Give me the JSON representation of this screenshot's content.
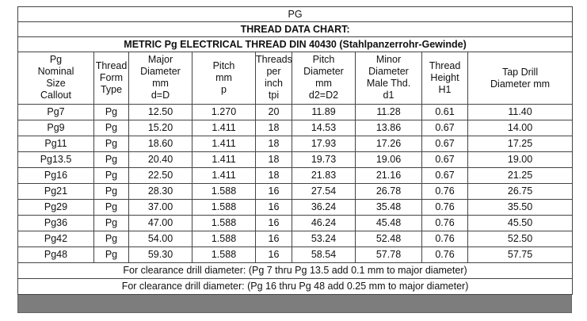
{
  "table": {
    "title": "PG",
    "chart_title": "THREAD DATA CHART:",
    "subtitle": "METRIC Pg ELECTRICAL THREAD DIN 40430 (Stahlpanzerrohr-Gewinde)",
    "headers": [
      [
        "Pg",
        "Nominal",
        "Size",
        "Callout"
      ],
      [
        "Thread",
        "Form",
        "Type"
      ],
      [
        "Major",
        "Diameter",
        "mm",
        "d=D"
      ],
      [
        "Pitch",
        "mm",
        "p"
      ],
      [
        "Threads",
        "per",
        "inch",
        "tpi"
      ],
      [
        "Pitch",
        "Diameter",
        "mm",
        "d2=D2"
      ],
      [
        "Minor",
        "Diameter",
        "Male Thd.",
        "d1"
      ],
      [
        "Thread",
        "Height",
        "H1"
      ],
      [
        "Tap Drill",
        "Diameter mm"
      ]
    ],
    "rows": [
      [
        "Pg7",
        "Pg",
        "12.50",
        "1.270",
        "20",
        "11.89",
        "11.28",
        "0.61",
        "11.40"
      ],
      [
        "Pg9",
        "Pg",
        "15.20",
        "1.411",
        "18",
        "14.53",
        "13.86",
        "0.67",
        "14.00"
      ],
      [
        "Pg11",
        "Pg",
        "18.60",
        "1.411",
        "18",
        "17.93",
        "17.26",
        "0.67",
        "17.25"
      ],
      [
        "Pg13.5",
        "Pg",
        "20.40",
        "1.411",
        "18",
        "19.73",
        "19.06",
        "0.67",
        "19.00"
      ],
      [
        "Pg16",
        "Pg",
        "22.50",
        "1.411",
        "18",
        "21.83",
        "21.16",
        "0.67",
        "21.25"
      ],
      [
        "Pg21",
        "Pg",
        "28.30",
        "1.588",
        "16",
        "27.54",
        "26.78",
        "0.76",
        "26.75"
      ],
      [
        "Pg29",
        "Pg",
        "37.00",
        "1.588",
        "16",
        "36.24",
        "35.48",
        "0.76",
        "35.50"
      ],
      [
        "Pg36",
        "Pg",
        "47.00",
        "1.588",
        "16",
        "46.24",
        "45.48",
        "0.76",
        "45.50"
      ],
      [
        "Pg42",
        "Pg",
        "54.00",
        "1.588",
        "16",
        "53.24",
        "52.48",
        "0.76",
        "52.50"
      ],
      [
        "Pg48",
        "Pg",
        "59.30",
        "1.588",
        "16",
        "58.54",
        "57.78",
        "0.76",
        "57.75"
      ]
    ],
    "notes": [
      "For clearance drill diameter: (Pg 7 thru Pg 13.5 add 0.1 mm to major diameter)",
      "For clearance drill diameter: (Pg 16 thru Pg 48 add 0.25 mm to major diameter)"
    ]
  },
  "colors": {
    "border": "#444444",
    "footer_bar": "#7d7d7d",
    "text": "#111111"
  }
}
